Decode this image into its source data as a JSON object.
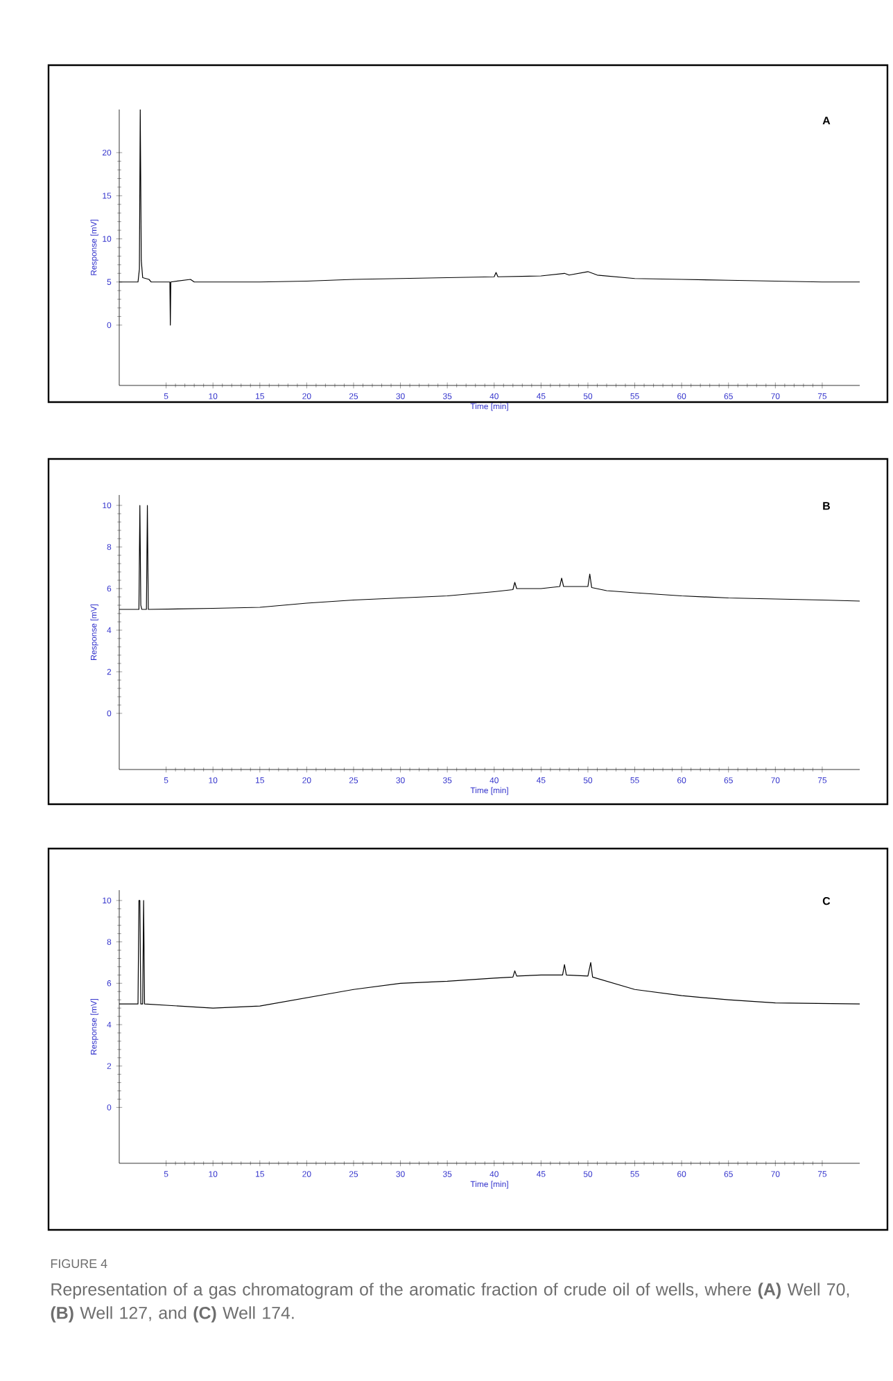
{
  "chart_data": [
    {
      "type": "line",
      "title": "A",
      "xlabel": "Time [min]",
      "ylabel": "Response [mV]",
      "xlim": [
        0,
        79
      ],
      "ylim": [
        -7,
        25
      ],
      "xticks": [
        5,
        10,
        15,
        20,
        25,
        30,
        35,
        40,
        45,
        50,
        55,
        60,
        65,
        70,
        75
      ],
      "yticks": [
        0,
        5,
        10,
        15,
        20
      ],
      "series": [
        {
          "color": "#000000",
          "x": [
            0,
            2.0,
            2.15,
            2.24,
            2.35,
            2.5,
            3.17,
            3.4,
            5.4,
            5.45,
            5.5,
            7.6,
            8,
            15,
            20,
            25,
            30,
            35,
            40,
            40.2,
            40.4,
            45,
            47.5,
            48,
            50,
            51,
            55,
            60,
            65,
            70,
            75,
            79
          ],
          "values": [
            5,
            5,
            6.5,
            25,
            7.5,
            5.5,
            5.3,
            5,
            5,
            0,
            5,
            5.3,
            5,
            5,
            5.1,
            5.3,
            5.4,
            5.5,
            5.6,
            6.1,
            5.6,
            5.7,
            6.0,
            5.8,
            6.2,
            5.8,
            5.4,
            5.3,
            5.2,
            5.1,
            5.0,
            5.0
          ]
        }
      ]
    },
    {
      "type": "line",
      "title": "B",
      "xlabel": "Time [min]",
      "ylabel": "Response [mV]",
      "xlim": [
        0,
        79
      ],
      "ylim": [
        -2.7,
        10.5
      ],
      "xticks": [
        5,
        10,
        15,
        20,
        25,
        30,
        35,
        40,
        45,
        50,
        55,
        60,
        65,
        70,
        75
      ],
      "yticks": [
        0,
        2,
        4,
        6,
        8,
        10
      ],
      "series": [
        {
          "color": "#000000",
          "x": [
            0,
            2.1,
            2.2,
            2.3,
            2.4,
            2.9,
            3.0,
            3.1,
            10,
            15,
            20,
            25,
            30,
            35,
            40,
            42,
            42.2,
            42.4,
            45,
            47,
            47.2,
            47.4,
            50,
            50.2,
            50.4,
            52,
            55,
            60,
            65,
            70,
            75,
            79
          ],
          "values": [
            5,
            5,
            10,
            5.2,
            5,
            5,
            10,
            5,
            5.05,
            5.1,
            5.3,
            5.45,
            5.55,
            5.65,
            5.85,
            5.95,
            6.3,
            6.0,
            6.0,
            6.1,
            6.5,
            6.1,
            6.1,
            6.7,
            6.05,
            5.9,
            5.8,
            5.65,
            5.55,
            5.5,
            5.45,
            5.4
          ]
        }
      ]
    },
    {
      "type": "line",
      "title": "C",
      "xlabel": "Time [min]",
      "ylabel": "Response [mV]",
      "xlim": [
        0,
        79
      ],
      "ylim": [
        -2.7,
        10.5
      ],
      "xticks": [
        5,
        10,
        15,
        20,
        25,
        30,
        35,
        40,
        45,
        50,
        55,
        60,
        65,
        70,
        75
      ],
      "yticks": [
        0,
        2,
        4,
        6,
        8,
        10
      ],
      "series": [
        {
          "color": "#000000",
          "x": [
            0,
            2.0,
            2.1,
            2.2,
            2.3,
            2.5,
            2.6,
            2.7,
            10,
            15,
            20,
            25,
            30,
            35,
            40,
            42,
            42.2,
            42.4,
            45,
            47.3,
            47.5,
            47.7,
            50,
            50.3,
            50.5,
            55,
            60,
            65,
            70,
            79
          ],
          "values": [
            5,
            5,
            10,
            10,
            5,
            5,
            10,
            5,
            4.8,
            4.9,
            5.3,
            5.7,
            6.0,
            6.1,
            6.25,
            6.3,
            6.6,
            6.35,
            6.4,
            6.4,
            6.9,
            6.4,
            6.35,
            7.0,
            6.3,
            5.7,
            5.4,
            5.2,
            5.05,
            5.0
          ]
        }
      ],
      "annotations": [
        "FIGURE 4",
        "Representation of a gas chromatogram of the aromatic fraction of crude oil of wells, where **(A)** Well 70, **(B)** Well 127, and **(C)** Well 174."
      ]
    }
  ]
}
